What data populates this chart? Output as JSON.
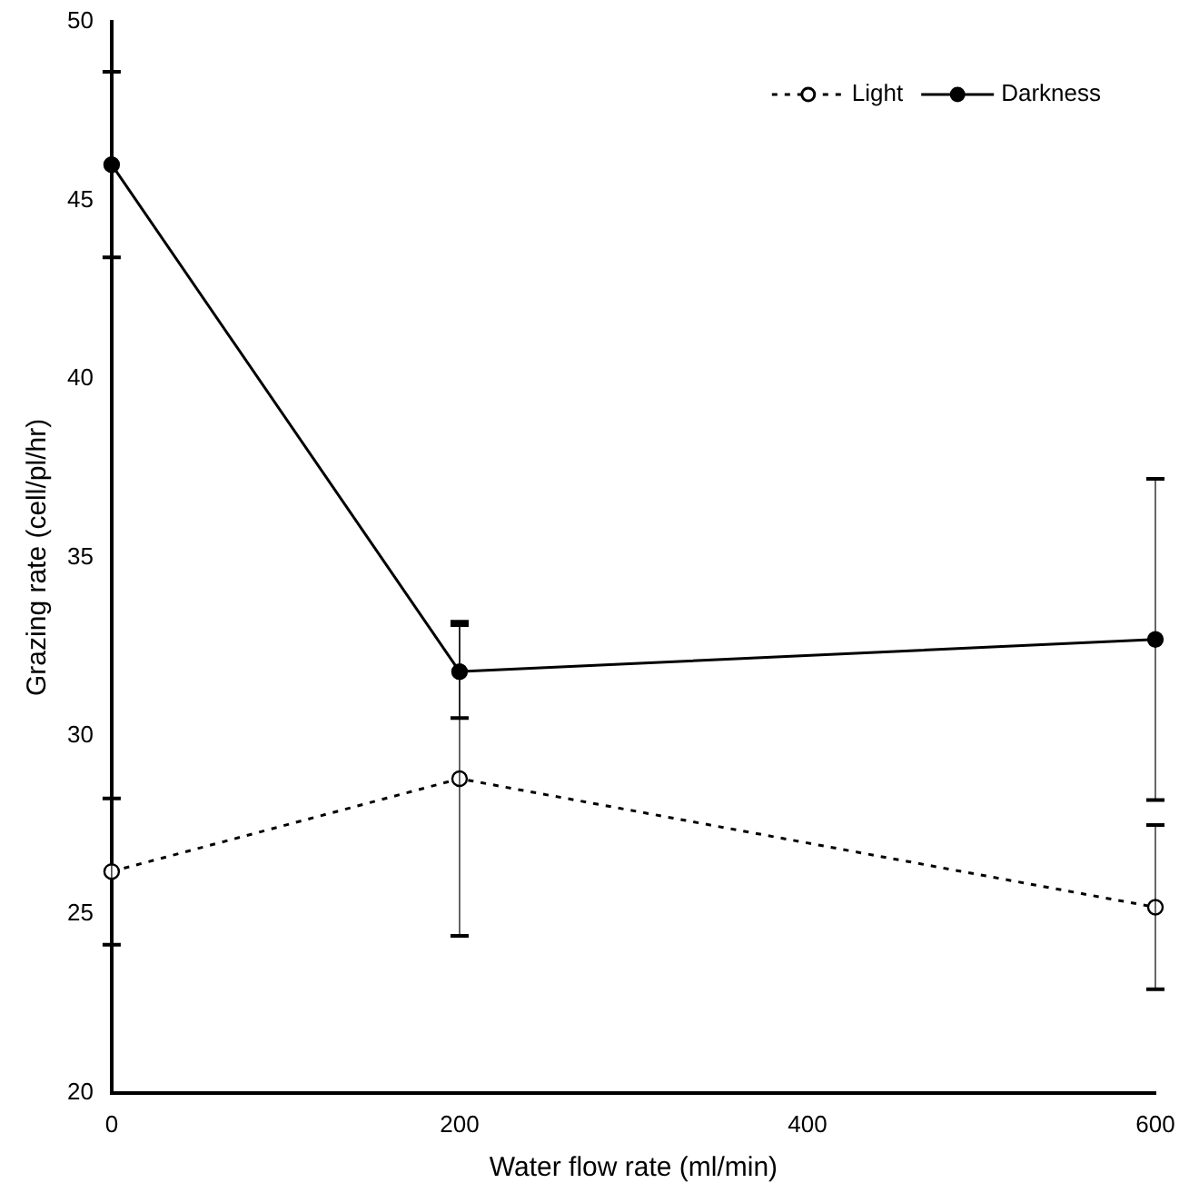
{
  "chart_data": {
    "type": "line",
    "xlabel": "Water flow rate (ml/min)",
    "ylabel": "Grazing rate (cell/pl/hr)",
    "x": [
      0,
      200,
      600
    ],
    "series": [
      {
        "name": "Light",
        "color": "#000000",
        "line_style": "dotted",
        "values": [
          26.2,
          28.8,
          25.2
        ],
        "errors": [
          2.05,
          4.4,
          2.3
        ]
      },
      {
        "name": "Darkness",
        "color": "#000000",
        "line_style": "solid",
        "values": [
          46,
          31.8,
          32.7
        ],
        "errors": [
          2.6,
          1.3,
          4.5
        ]
      }
    ],
    "xlim": [
      0,
      600
    ],
    "xticks": [
      0,
      200,
      400,
      600
    ],
    "ylim": [
      20,
      50
    ],
    "yticks": [
      20,
      25,
      30,
      35,
      40,
      45,
      50
    ],
    "grid": false,
    "legend": "top right",
    "marker": "circle"
  }
}
